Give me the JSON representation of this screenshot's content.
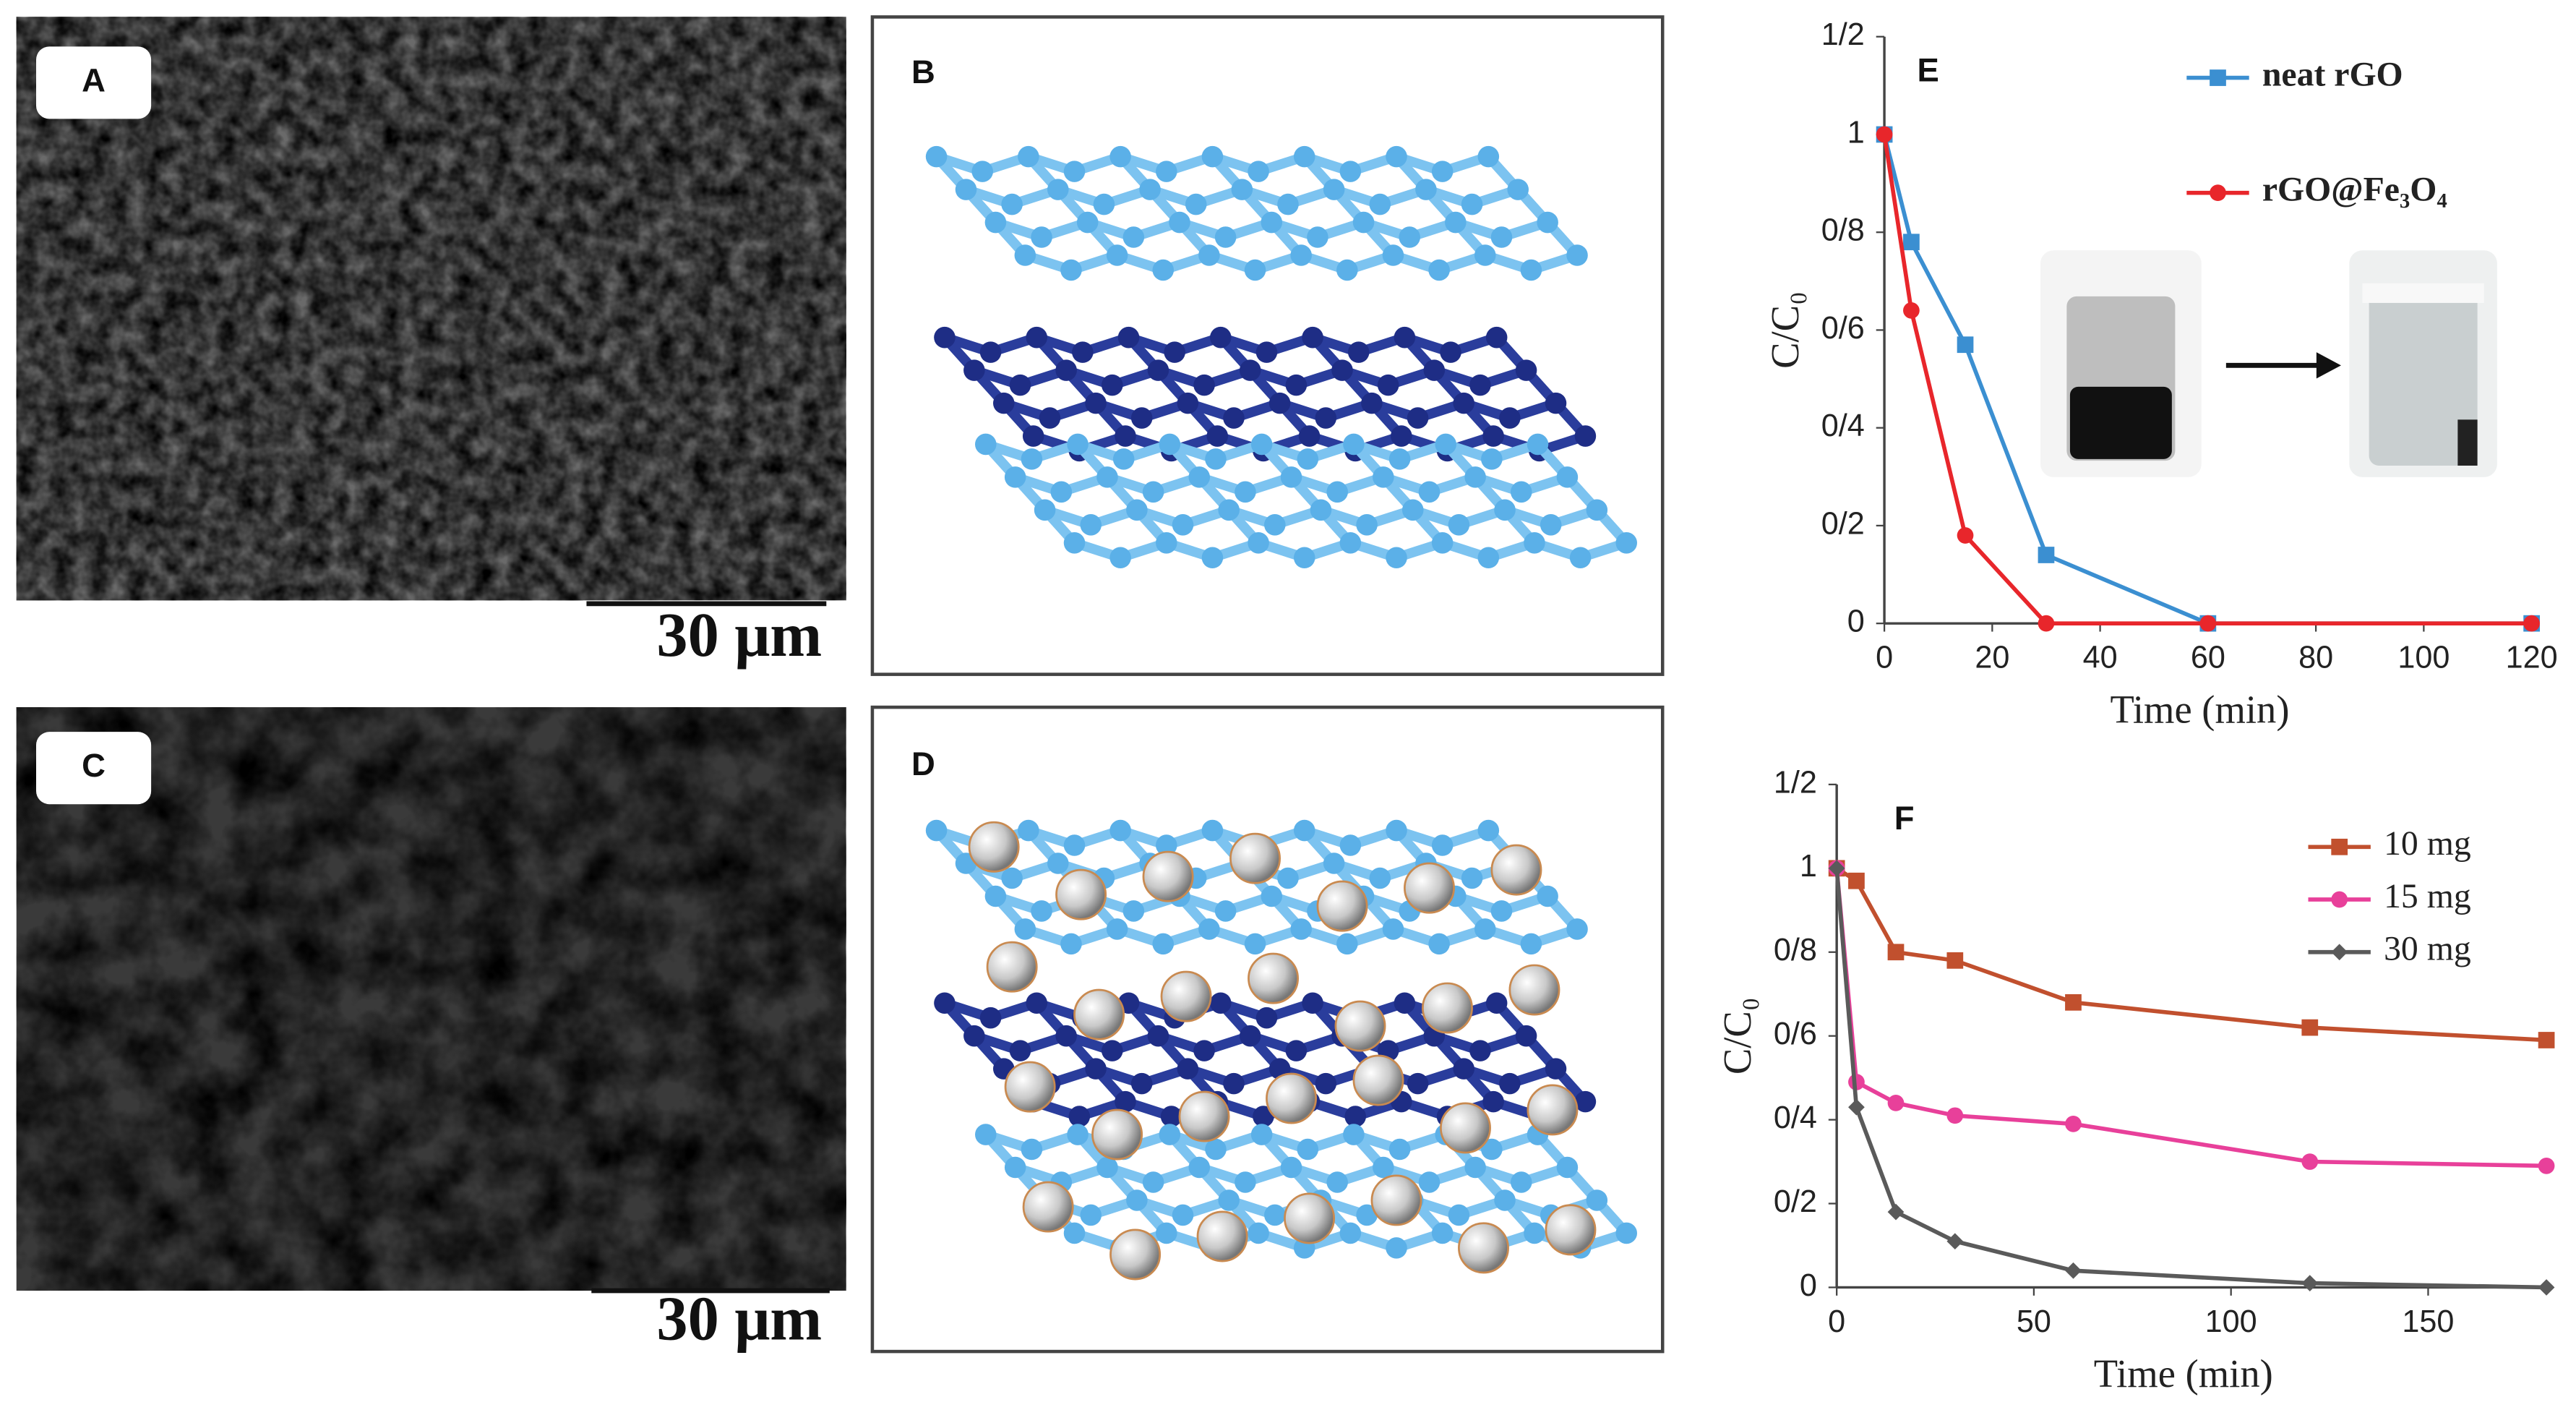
{
  "panels": [
    {
      "label": "A",
      "scale_bar": "30 μm"
    },
    {
      "label": "B"
    },
    {
      "label": "C",
      "scale_bar": "30 μm"
    },
    {
      "label": "D"
    }
  ],
  "chart_data": [
    {
      "type": "line",
      "label": "E",
      "xlabel": "Time (min)",
      "ylabel": "C/C₀",
      "x": [
        0,
        5,
        15,
        30,
        60,
        120
      ],
      "series": [
        {
          "name": "neat rGO",
          "color": "#3b8fd1",
          "marker": "square",
          "values": [
            1,
            0.78,
            0.57,
            0.14,
            0,
            0
          ]
        },
        {
          "name": "rGO@Fe₃O₄",
          "color": "#e8262b",
          "marker": "circle",
          "values": [
            1,
            0.64,
            0.18,
            0,
            0,
            0
          ]
        }
      ],
      "xlim": [
        0,
        120
      ],
      "ylim": [
        0,
        1.2
      ],
      "xticks": [
        0,
        20,
        40,
        60,
        80,
        100,
        120
      ],
      "yticks": [
        0,
        {
          "value": 0.2,
          "label": "0/2"
        },
        {
          "value": 0.4,
          "label": "0/4"
        },
        {
          "value": 0.6,
          "label": "0/6"
        },
        {
          "value": 0.8,
          "label": "0/8"
        },
        1,
        {
          "value": 1.2,
          "label": "1/2"
        }
      ],
      "legend": "upper right",
      "grid": false
    },
    {
      "type": "line",
      "label": "F",
      "xlabel": "Time (min)",
      "ylabel": "C/C₀",
      "x": [
        0,
        5,
        15,
        30,
        60,
        120,
        180
      ],
      "series": [
        {
          "name": "10 mg",
          "color": "#c1502e",
          "marker": "square",
          "values": [
            1,
            0.97,
            0.8,
            0.78,
            0.68,
            0.62,
            0.59
          ]
        },
        {
          "name": "15 mg",
          "color": "#e8409a",
          "marker": "circle",
          "values": [
            1,
            0.49,
            0.44,
            0.41,
            0.39,
            0.3,
            0.29
          ]
        },
        {
          "name": "30 mg",
          "color": "#5a5a5a",
          "marker": "diamond",
          "values": [
            1,
            0.43,
            0.18,
            0.11,
            0.04,
            0.01,
            0
          ]
        }
      ],
      "xlim": [
        0,
        180
      ],
      "ylim": [
        0,
        1.2
      ],
      "xticks": [
        0,
        50,
        100,
        150
      ],
      "yticks": [
        0,
        {
          "value": 0.2,
          "label": "0/2"
        },
        {
          "value": 0.4,
          "label": "0/4"
        },
        {
          "value": 0.6,
          "label": "0/6"
        },
        {
          "value": 0.8,
          "label": "0/8"
        },
        1,
        {
          "value": 1.2,
          "label": "1/2"
        }
      ],
      "legend": "upper right",
      "grid": false
    }
  ]
}
